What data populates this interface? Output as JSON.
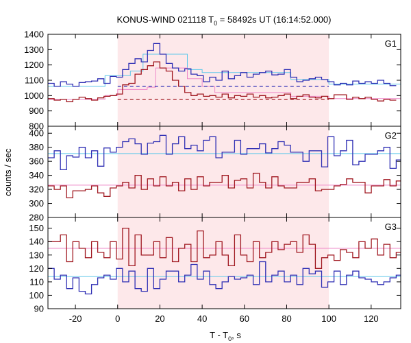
{
  "chart_data": {
    "type": "line",
    "title_parts": [
      "KONUS-WIND 021118 T",
      "0",
      " = 58492s UT (16:14:52.000)"
    ],
    "xlabel_parts": [
      "T - T",
      "0",
      ", s"
    ],
    "ylabel": "counts / sec",
    "xlim": [
      -33,
      134
    ],
    "x_ticks": [
      -20,
      0,
      20,
      40,
      60,
      80,
      100,
      120
    ],
    "shaded_interval": [
      0,
      100
    ],
    "colors": {
      "shade": "#fde8ea",
      "blue": "#2f2fb4",
      "red": "#a01820",
      "light_blue": "#5ec8ea",
      "light_pink": "#ee88c8"
    },
    "bin_start": -33,
    "bin_width": 2.944,
    "panels": [
      {
        "label": "G1",
        "ylim": [
          800,
          1400
        ],
        "y_ticks": [
          800,
          900,
          1000,
          1100,
          1200,
          1300,
          1400
        ],
        "series": [
          {
            "color_key": "blue",
            "style": "step",
            "values": [
              1080,
              1060,
              1090,
              1075,
              1060,
              1085,
              1090,
              1095,
              1110,
              1080,
              1125,
              1120,
              1170,
              1210,
              1240,
              1220,
              1295,
              1340,
              1270,
              1210,
              1180,
              1160,
              1175,
              1140,
              1130,
              1090,
              1120,
              1100,
              1160,
              1110,
              1130,
              1150,
              1120,
              1140,
              1150,
              1160,
              1135,
              1140,
              1170,
              1120,
              1090,
              1100,
              1110,
              1120,
              1105,
              1090,
              1070,
              1080,
              1070,
              1095,
              1080,
              1090,
              1080,
              1100,
              1080,
              1065
            ]
          },
          {
            "color_key": "red",
            "style": "step",
            "values": [
              980,
              970,
              975,
              960,
              975,
              990,
              980,
              970,
              985,
              995,
              1000,
              1010,
              1070,
              1080,
              1140,
              1170,
              1195,
              1220,
              1180,
              1160,
              1100,
              1060,
              1020,
              1000,
              1010,
              995,
              1000,
              990,
              1010,
              985,
              1000,
              995,
              1010,
              990,
              1000,
              985,
              990,
              1000,
              1010,
              980,
              995,
              1005,
              990,
              985,
              995,
              980,
              1005,
              1005,
              975,
              990,
              980,
              990,
              975,
              965,
              975,
              970
            ]
          },
          {
            "color_key": "light_blue",
            "style": "step",
            "points": [
              [
                -33,
                1060
              ],
              [
                -6,
                1060
              ],
              [
                -6,
                1130
              ],
              [
                6,
                1130
              ],
              [
                6,
                1160
              ],
              [
                12,
                1160
              ],
              [
                12,
                1270
              ],
              [
                33,
                1270
              ],
              [
                33,
                1170
              ],
              [
                40,
                1170
              ],
              [
                40,
                1150
              ],
              [
                82,
                1150
              ],
              [
                82,
                1105
              ],
              [
                100,
                1105
              ],
              [
                100,
                1075
              ],
              [
                134,
                1075
              ]
            ]
          },
          {
            "color_key": "light_pink",
            "style": "step",
            "points": [
              [
                -33,
                975
              ],
              [
                -6,
                975
              ],
              [
                -6,
                1000
              ],
              [
                0,
                1000
              ],
              [
                0,
                1040
              ],
              [
                14,
                1040
              ],
              [
                14,
                1055
              ],
              [
                18,
                1055
              ],
              [
                18,
                1180
              ],
              [
                33,
                1180
              ],
              [
                33,
                1110
              ],
              [
                40,
                1110
              ],
              [
                40,
                1060
              ],
              [
                46,
                1060
              ],
              [
                46,
                1020
              ],
              [
                82,
                1020
              ],
              [
                82,
                995
              ],
              [
                100,
                995
              ],
              [
                100,
                980
              ],
              [
                134,
                980
              ]
            ]
          },
          {
            "color_key": "blue",
            "style": "dashed",
            "values": [
              1060
            ],
            "range": [
              0,
              100
            ]
          },
          {
            "color_key": "red",
            "style": "dashed",
            "values": [
              975
            ],
            "range": [
              0,
              100
            ]
          }
        ]
      },
      {
        "label": "G2",
        "ylim": [
          280,
          410
        ],
        "y_ticks": [
          280,
          300,
          320,
          340,
          360,
          380,
          400
        ],
        "series": [
          {
            "color_key": "blue",
            "style": "step",
            "values": [
              365,
              375,
              348,
              368,
              366,
              380,
              365,
              375,
              353,
              379,
              373,
              380,
              388,
              392,
              385,
              370,
              386,
              388,
              397,
              370,
              385,
              395,
              378,
              383,
              375,
              390,
              395,
              365,
              373,
              373,
              390,
              370,
              378,
              378,
              385,
              372,
              378,
              388,
              383,
              373,
              373,
              360,
              375,
              375,
              352,
              395,
              368,
              375,
              390,
              355,
              360,
              370,
              370,
              375,
              380,
              350,
              362
            ]
          },
          {
            "color_key": "red",
            "style": "step",
            "values": [
              325,
              320,
              325,
              308,
              318,
              318,
              320,
              325,
              315,
              310,
              322,
              325,
              330,
              322,
              340,
              320,
              335,
              325,
              338,
              325,
              330,
              318,
              335,
              320,
              338,
              325,
              330,
              330,
              340,
              322,
              333,
              335,
              322,
              343,
              330,
              322,
              338,
              325,
              322,
              322,
              330,
              330,
              335,
              318,
              320,
              320,
              325,
              327,
              335,
              330,
              330,
              315,
              325,
              325,
              334,
              325,
              332
            ]
          },
          {
            "color_key": "light_blue",
            "style": "flat",
            "values": [
              371
            ]
          },
          {
            "color_key": "light_pink",
            "style": "flat",
            "values": [
              326
            ]
          }
        ]
      },
      {
        "label": "G3",
        "ylim": [
          90,
          158
        ],
        "y_ticks": [
          90,
          100,
          110,
          120,
          130,
          140,
          150
        ],
        "series": [
          {
            "color_key": "red",
            "style": "step",
            "values": [
              140,
              140,
              145,
              125,
              140,
              135,
              128,
              140,
              132,
              128,
              140,
              127,
              150,
              122,
              145,
              130,
              130,
              140,
              128,
              143,
              125,
              135,
              138,
              125,
              148,
              128,
              130,
              140,
              130,
              122,
              145,
              130,
              125,
              140,
              128,
              132,
              140,
              134,
              138,
              140,
              132,
              145,
              138,
              120,
              128,
              130,
              126,
              134,
              132,
              128,
              140,
              135,
              142,
              130,
              138,
              128,
              132
            ]
          },
          {
            "color_key": "blue",
            "style": "step",
            "values": [
              120,
              112,
              115,
              105,
              113,
              103,
              101,
              108,
              113,
              115,
              112,
              120,
              110,
              118,
              105,
              103,
              120,
              105,
              112,
              118,
              118,
              110,
              115,
              123,
              112,
              118,
              108,
              105,
              110,
              114,
              112,
              113,
              115,
              108,
              125,
              110,
              115,
              118,
              110,
              115,
              108,
              120,
              116,
              118,
              106,
              110,
              118,
              108,
              115,
              118,
              113,
              112,
              110,
              108,
              110,
              113,
              115
            ]
          },
          {
            "color_key": "light_blue",
            "style": "flat",
            "values": [
              114
            ]
          },
          {
            "color_key": "light_pink",
            "style": "flat",
            "values": [
              135
            ]
          }
        ]
      }
    ]
  }
}
